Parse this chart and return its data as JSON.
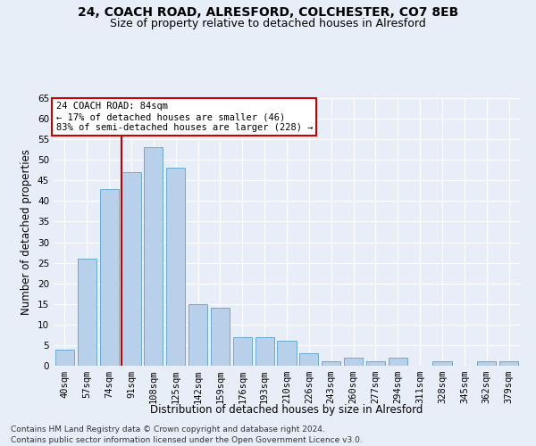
{
  "title_line1": "24, COACH ROAD, ALRESFORD, COLCHESTER, CO7 8EB",
  "title_line2": "Size of property relative to detached houses in Alresford",
  "xlabel": "Distribution of detached houses by size in Alresford",
  "ylabel": "Number of detached properties",
  "footer_line1": "Contains HM Land Registry data © Crown copyright and database right 2024.",
  "footer_line2": "Contains public sector information licensed under the Open Government Licence v3.0.",
  "annotation_line1": "24 COACH ROAD: 84sqm",
  "annotation_line2": "← 17% of detached houses are smaller (46)",
  "annotation_line3": "83% of semi-detached houses are larger (228) →",
  "bar_labels": [
    "40sqm",
    "57sqm",
    "74sqm",
    "91sqm",
    "108sqm",
    "125sqm",
    "142sqm",
    "159sqm",
    "176sqm",
    "193sqm",
    "210sqm",
    "226sqm",
    "243sqm",
    "260sqm",
    "277sqm",
    "294sqm",
    "311sqm",
    "328sqm",
    "345sqm",
    "362sqm",
    "379sqm"
  ],
  "bar_values": [
    4,
    26,
    43,
    47,
    53,
    48,
    15,
    14,
    7,
    7,
    6,
    3,
    1,
    2,
    1,
    2,
    0,
    1,
    0,
    1,
    1
  ],
  "bar_color": "#b8d0ea",
  "bar_edge_color": "#6aaad4",
  "vline_color": "#bb0000",
  "annotation_box_color": "#cc0000",
  "ylim": [
    0,
    65
  ],
  "yticks": [
    0,
    5,
    10,
    15,
    20,
    25,
    30,
    35,
    40,
    45,
    50,
    55,
    60,
    65
  ],
  "background_color": "#e8eef8",
  "grid_color": "#ffffff",
  "title_fontsize": 10,
  "subtitle_fontsize": 9,
  "axis_label_fontsize": 8.5,
  "tick_fontsize": 7.5,
  "footer_fontsize": 6.5,
  "vline_pos": 2.57
}
